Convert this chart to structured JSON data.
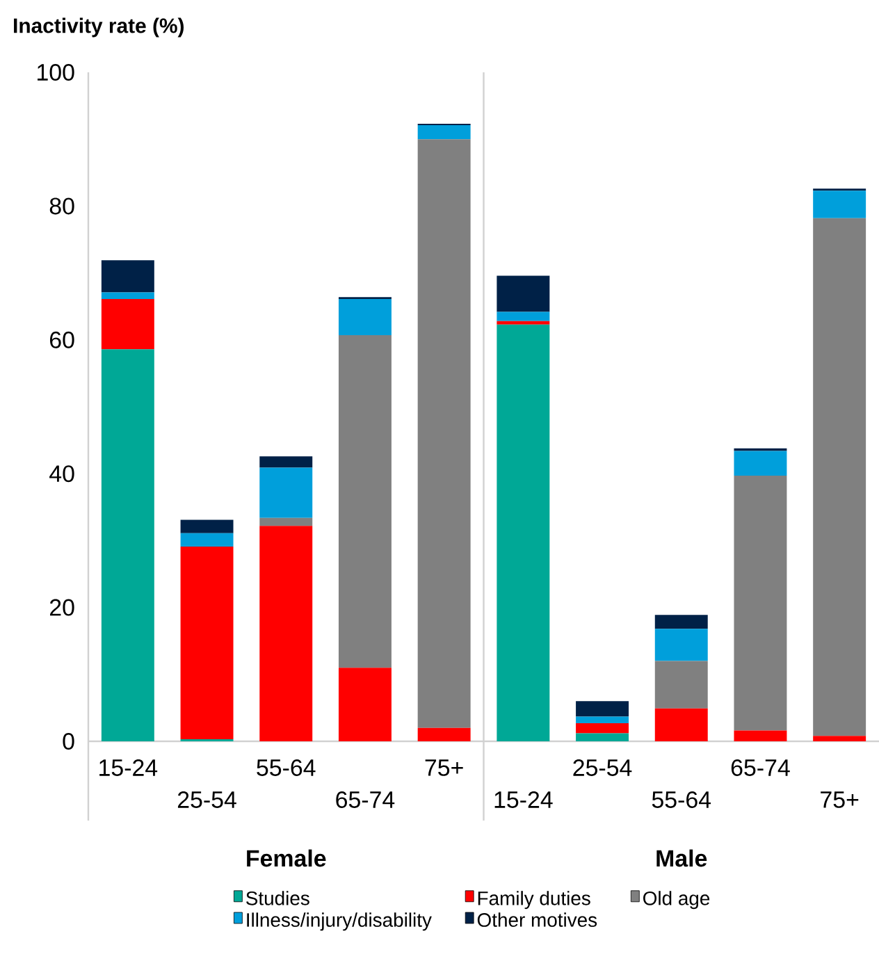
{
  "chart_data": {
    "type": "bar",
    "stacked": true,
    "ylabel": "Inactivity rate (%)",
    "categories": [
      "15-24",
      "25-54",
      "55-64",
      "65-74",
      "75+",
      "15-24",
      "25-54",
      "55-64",
      "65-74",
      "75+"
    ],
    "series": [
      {
        "name": "Studies",
        "color": "#00a896",
        "values": [
          58.6,
          0.3,
          0,
          0,
          0,
          62.3,
          1.2,
          0,
          0,
          0
        ]
      },
      {
        "name": "Family duties",
        "color": "#ff0000",
        "values": [
          7.5,
          28.8,
          32.2,
          11.0,
          2.0,
          0.5,
          1.5,
          4.9,
          1.6,
          0.8
        ]
      },
      {
        "name": "Old age",
        "color": "#808080",
        "values": [
          0,
          0,
          1.2,
          49.7,
          88.0,
          0,
          0,
          7.1,
          38.1,
          77.4
        ]
      },
      {
        "name": "Illness/injury/disability",
        "color": "#009fdb",
        "values": [
          1.0,
          2.0,
          7.5,
          5.4,
          2.1,
          1.4,
          1.0,
          4.8,
          3.7,
          4.1
        ]
      },
      {
        "name": "Other motives",
        "color": "#002147",
        "values": [
          4.8,
          2.0,
          1.7,
          0.3,
          0.2,
          5.4,
          2.3,
          2.1,
          0.4,
          0.3
        ]
      }
    ],
    "ylim": [
      0,
      100
    ],
    "yticks": [
      0,
      20,
      40,
      60,
      80,
      100
    ],
    "annotations": [
      "Female",
      "Male"
    ],
    "legend": "bottom"
  }
}
